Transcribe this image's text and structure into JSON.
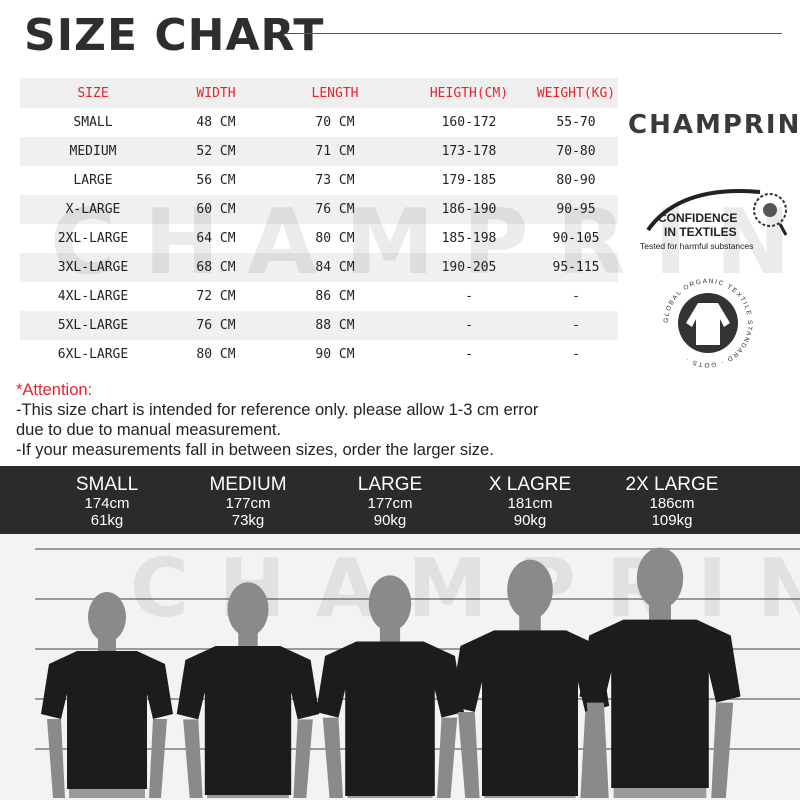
{
  "title": "SIZE CHART",
  "brand": "CHAMPRINT",
  "watermark": "CHAMPRINT",
  "table": {
    "headers": [
      "SIZE",
      "WIDTH",
      "LENGTH",
      "HEIGTH(CM)",
      "WEIGHT(KG)"
    ],
    "rows": [
      [
        "SMALL",
        "48 CM",
        "70 CM",
        "160-172",
        "55-70"
      ],
      [
        "MEDIUM",
        "52 CM",
        "71 CM",
        "173-178",
        "70-80"
      ],
      [
        "LARGE",
        "56 CM",
        "73 CM",
        "179-185",
        "80-90"
      ],
      [
        "X-LARGE",
        "60 CM",
        "76 CM",
        "186-190",
        "90-95"
      ],
      [
        "2XL-LARGE",
        "64 CM",
        "80 CM",
        "185-198",
        "90-105"
      ],
      [
        "3XL-LARGE",
        "68 CM",
        "84 CM",
        "190-205",
        "95-115"
      ],
      [
        "4XL-LARGE",
        "72 CM",
        "86 CM",
        "-",
        "-"
      ],
      [
        "5XL-LARGE",
        "76 CM",
        "88 CM",
        "-",
        "-"
      ],
      [
        "6XL-LARGE",
        "80 CM",
        "90 CM",
        "-",
        "-"
      ]
    ]
  },
  "oeko": {
    "line1": "CONFIDENCE",
    "line2": "IN TEXTILES",
    "line3": "Tested for harmful substances"
  },
  "gots": {
    "text": "GLOBAL ORGANIC TEXTILE STANDARD · GOTS ·"
  },
  "attention": {
    "heading": "*Attention:",
    "lines": [
      "-This size chart is intended for reference only. please allow 1-3 cm error",
      "due to due to manual measurement.",
      "-If your measurements fall in between sizes, order the larger size."
    ]
  },
  "models": [
    {
      "size": "SMALL",
      "height": "174cm",
      "weight": "61kg"
    },
    {
      "size": "MEDIUM",
      "height": "177cm",
      "weight": "73kg"
    },
    {
      "size": "LARGE",
      "height": "177cm",
      "weight": "90kg"
    },
    {
      "size": "X LAGRE",
      "height": "181cm",
      "weight": "90kg"
    },
    {
      "size": "2X LARGE",
      "height": "186cm",
      "weight": "109kg"
    }
  ],
  "colors": {
    "accent": "#e8232b",
    "band": "#2b2b2b",
    "shirt": "#1c1c1c",
    "skin": "#8a8a8a"
  }
}
